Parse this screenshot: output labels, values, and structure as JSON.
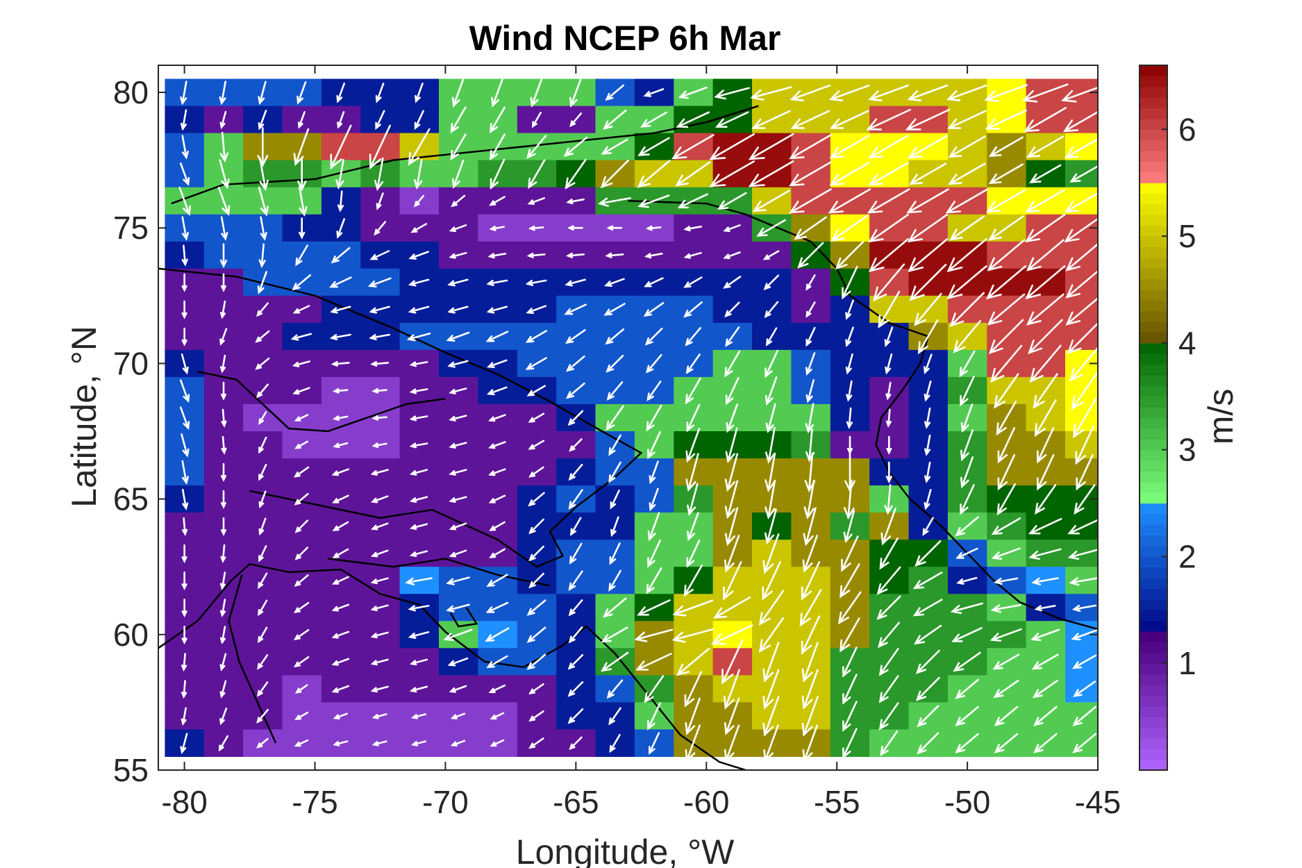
{
  "chart_data": {
    "type": "heatmap",
    "title": "Wind NCEP 6h Mar",
    "xlabel": "Longitude, °W",
    "ylabel": "Latitude, °N",
    "colorbar_label": "m/s",
    "xlim": [
      -81,
      -45
    ],
    "ylim": [
      55,
      81
    ],
    "xticks": [
      -80,
      -75,
      -70,
      -65,
      -60,
      -55,
      -50,
      -45
    ],
    "yticks": [
      55,
      60,
      65,
      70,
      75,
      80
    ],
    "colorbar_ticks": [
      1,
      2,
      3,
      4,
      5,
      6
    ],
    "colorbar_range": [
      0,
      6.6
    ],
    "grid_x": [
      -80,
      -78.5,
      -77,
      -75.5,
      -74,
      -72.5,
      -71,
      -69.5,
      -68,
      -66.5,
      -65,
      -63.5,
      -62,
      -60.5,
      -59,
      -57.5,
      -56,
      -54.5,
      -53,
      -51.5,
      -50,
      -48.5,
      -47,
      -45.5
    ],
    "grid_y": [
      80,
      79,
      78,
      77,
      76,
      75,
      74,
      73,
      72,
      71,
      70,
      69,
      68,
      67,
      66,
      65,
      64,
      63,
      62,
      61,
      60,
      59,
      58,
      57,
      56
    ],
    "speed_m_s": [
      [
        2.0,
        2.0,
        2.0,
        2.0,
        1.5,
        1.5,
        1.5,
        3.0,
        3.0,
        3.0,
        3.0,
        2.0,
        1.5,
        3.0,
        4.0,
        5.0,
        5.0,
        5.0,
        5.0,
        5.0,
        5.0,
        5.5,
        6.0,
        6.0
      ],
      [
        1.5,
        1.0,
        1.5,
        1.0,
        1.0,
        1.5,
        1.5,
        3.0,
        3.0,
        1.0,
        1.0,
        3.0,
        3.0,
        4.0,
        4.0,
        5.0,
        5.0,
        5.0,
        6.0,
        6.0,
        5.0,
        5.5,
        6.0,
        6.0
      ],
      [
        2.0,
        3.0,
        4.5,
        4.5,
        6.0,
        6.0,
        5.0,
        3.0,
        3.0,
        3.0,
        3.0,
        3.0,
        4.0,
        6.0,
        6.5,
        6.5,
        6.0,
        5.5,
        5.5,
        5.5,
        5.0,
        4.5,
        5.0,
        5.5
      ],
      [
        2.0,
        3.0,
        3.5,
        3.5,
        3.0,
        3.5,
        3.0,
        3.0,
        3.5,
        3.5,
        4.0,
        4.5,
        5.0,
        5.0,
        6.5,
        6.5,
        6.0,
        5.5,
        5.5,
        5.0,
        5.0,
        4.5,
        4.0,
        3.5
      ],
      [
        3.0,
        3.0,
        3.0,
        3.0,
        1.5,
        1.0,
        0.5,
        1.0,
        1.0,
        1.0,
        1.0,
        3.5,
        3.5,
        3.5,
        3.5,
        5.0,
        6.0,
        6.0,
        6.0,
        6.0,
        6.0,
        5.5,
        5.5,
        5.5
      ],
      [
        2.0,
        2.0,
        2.0,
        1.5,
        1.5,
        1.0,
        1.0,
        1.0,
        0.5,
        0.5,
        0.5,
        0.5,
        0.5,
        1.0,
        1.0,
        3.5,
        4.5,
        5.5,
        6.0,
        6.0,
        5.0,
        5.0,
        6.0,
        6.0
      ],
      [
        1.5,
        2.0,
        2.0,
        2.0,
        2.0,
        1.5,
        1.5,
        1.0,
        1.0,
        1.0,
        1.0,
        1.0,
        1.0,
        1.0,
        1.0,
        1.0,
        4.0,
        4.5,
        6.5,
        6.5,
        6.5,
        6.0,
        6.0,
        6.0
      ],
      [
        1.0,
        1.0,
        2.0,
        2.0,
        2.0,
        2.0,
        1.5,
        1.5,
        1.5,
        1.5,
        1.5,
        1.5,
        1.5,
        1.5,
        1.5,
        1.5,
        1.0,
        4.0,
        6.0,
        6.5,
        6.5,
        6.5,
        6.5,
        6.0
      ],
      [
        1.0,
        1.0,
        1.0,
        1.0,
        1.5,
        1.5,
        1.5,
        1.5,
        1.5,
        1.5,
        2.0,
        2.0,
        2.0,
        2.0,
        1.5,
        1.5,
        1.0,
        1.5,
        5.0,
        5.0,
        6.0,
        6.0,
        6.0,
        6.0
      ],
      [
        1.0,
        1.0,
        1.0,
        1.5,
        1.5,
        1.5,
        2.0,
        2.0,
        2.0,
        2.0,
        2.0,
        2.0,
        2.0,
        2.0,
        2.0,
        1.5,
        1.5,
        1.5,
        1.5,
        4.5,
        5.0,
        6.0,
        6.0,
        6.0
      ],
      [
        1.5,
        1.0,
        1.0,
        1.0,
        1.0,
        1.0,
        1.0,
        1.5,
        1.5,
        2.0,
        2.0,
        2.0,
        2.0,
        2.0,
        3.0,
        3.0,
        2.0,
        1.5,
        1.5,
        1.5,
        3.0,
        6.0,
        6.0,
        5.5
      ],
      [
        2.0,
        1.0,
        1.0,
        1.0,
        0.5,
        0.5,
        1.0,
        1.0,
        1.5,
        1.5,
        2.0,
        2.0,
        2.0,
        3.0,
        3.0,
        3.0,
        2.0,
        1.5,
        1.0,
        1.5,
        3.5,
        5.0,
        5.0,
        5.5
      ],
      [
        2.0,
        1.0,
        0.5,
        0.5,
        0.5,
        0.5,
        1.0,
        1.0,
        1.0,
        1.0,
        1.5,
        3.0,
        3.0,
        3.0,
        3.0,
        3.0,
        3.0,
        1.5,
        1.0,
        1.5,
        3.0,
        4.5,
        5.0,
        5.5
      ],
      [
        2.0,
        1.0,
        1.0,
        0.5,
        0.5,
        0.5,
        1.0,
        1.0,
        1.0,
        1.0,
        1.0,
        2.0,
        3.0,
        4.0,
        4.0,
        4.0,
        3.5,
        1.0,
        1.0,
        1.5,
        3.5,
        4.5,
        4.5,
        5.0
      ],
      [
        2.0,
        1.0,
        1.0,
        1.0,
        1.0,
        1.0,
        1.0,
        1.0,
        1.0,
        1.0,
        1.5,
        2.0,
        2.0,
        4.5,
        4.5,
        4.5,
        4.5,
        4.5,
        1.5,
        1.5,
        3.5,
        4.5,
        4.5,
        4.5
      ],
      [
        1.5,
        1.0,
        1.0,
        1.0,
        1.0,
        1.0,
        1.0,
        1.0,
        1.0,
        1.5,
        2.0,
        1.5,
        2.0,
        3.5,
        4.5,
        4.5,
        4.5,
        4.5,
        3.0,
        1.5,
        3.5,
        4.0,
        4.0,
        4.0
      ],
      [
        1.0,
        1.0,
        1.0,
        1.0,
        1.0,
        1.0,
        1.0,
        1.0,
        1.0,
        1.5,
        1.5,
        1.5,
        3.0,
        3.0,
        4.5,
        4.0,
        4.5,
        3.5,
        4.5,
        1.5,
        3.0,
        3.5,
        4.0,
        4.0
      ],
      [
        1.0,
        1.0,
        1.0,
        1.0,
        1.0,
        1.0,
        1.0,
        1.0,
        1.0,
        1.5,
        2.0,
        2.0,
        3.0,
        3.0,
        4.5,
        5.0,
        4.5,
        4.5,
        4.0,
        4.0,
        2.0,
        3.0,
        3.5,
        3.5
      ],
      [
        1.0,
        1.0,
        1.0,
        1.0,
        1.0,
        1.0,
        2.5,
        2.0,
        2.0,
        1.5,
        2.0,
        2.0,
        3.0,
        4.0,
        5.0,
        5.0,
        5.0,
        4.5,
        4.0,
        3.5,
        1.5,
        2.0,
        2.5,
        3.0
      ],
      [
        1.0,
        1.0,
        1.0,
        1.0,
        1.0,
        1.0,
        1.5,
        2.0,
        2.0,
        2.0,
        1.5,
        3.0,
        4.0,
        5.0,
        5.0,
        5.0,
        5.0,
        4.5,
        3.5,
        3.5,
        3.5,
        3.0,
        1.5,
        2.0
      ],
      [
        1.0,
        1.0,
        1.0,
        1.0,
        1.0,
        1.0,
        1.5,
        3.0,
        2.5,
        2.0,
        1.5,
        3.0,
        4.5,
        5.0,
        5.5,
        5.0,
        5.0,
        4.5,
        3.5,
        3.5,
        3.5,
        3.5,
        3.0,
        2.5
      ],
      [
        1.0,
        1.0,
        1.0,
        1.0,
        1.0,
        1.0,
        1.0,
        1.5,
        2.0,
        2.0,
        1.5,
        3.5,
        4.5,
        5.0,
        6.0,
        5.0,
        5.0,
        3.5,
        3.5,
        3.5,
        3.5,
        3.0,
        3.0,
        2.5
      ],
      [
        1.0,
        1.0,
        1.0,
        0.5,
        1.0,
        1.0,
        1.0,
        1.0,
        1.0,
        1.0,
        1.5,
        2.0,
        3.5,
        4.5,
        5.0,
        5.0,
        5.0,
        3.5,
        3.5,
        3.5,
        3.0,
        3.0,
        3.0,
        2.5
      ],
      [
        1.0,
        1.0,
        1.0,
        0.5,
        0.5,
        0.5,
        0.5,
        0.5,
        0.5,
        1.0,
        1.5,
        1.5,
        3.0,
        4.5,
        4.5,
        5.0,
        5.0,
        3.5,
        3.5,
        3.0,
        3.0,
        3.0,
        3.0,
        3.0
      ],
      [
        1.5,
        1.0,
        0.5,
        0.5,
        0.5,
        0.5,
        0.5,
        0.5,
        0.5,
        1.0,
        1.0,
        1.5,
        2.0,
        4.5,
        4.5,
        4.5,
        4.5,
        3.5,
        3.0,
        3.0,
        3.0,
        3.0,
        3.0,
        3.0
      ]
    ],
    "arrow_direction_deg": [
      [
        190,
        190,
        195,
        200,
        200,
        200,
        200,
        200,
        200,
        200,
        200,
        230,
        250,
        250,
        255,
        255,
        250,
        250,
        250,
        250,
        250,
        250,
        250,
        250
      ],
      [
        190,
        195,
        200,
        200,
        200,
        205,
        205,
        210,
        210,
        210,
        220,
        230,
        240,
        245,
        245,
        245,
        245,
        245,
        245,
        245,
        245,
        245,
        240,
        240
      ],
      [
        170,
        175,
        180,
        200,
        205,
        205,
        210,
        210,
        210,
        220,
        230,
        240,
        240,
        240,
        240,
        240,
        240,
        240,
        240,
        240,
        240,
        240,
        240,
        240
      ],
      [
        160,
        165,
        170,
        180,
        190,
        190,
        190,
        200,
        205,
        210,
        215,
        225,
        230,
        235,
        240,
        240,
        240,
        240,
        240,
        240,
        240,
        240,
        240,
        240
      ],
      [
        160,
        160,
        165,
        170,
        185,
        200,
        220,
        230,
        240,
        250,
        260,
        260,
        250,
        245,
        240,
        240,
        240,
        240,
        240,
        240,
        240,
        240,
        240,
        240
      ],
      [
        170,
        170,
        170,
        180,
        200,
        220,
        240,
        250,
        260,
        265,
        270,
        270,
        265,
        260,
        250,
        240,
        235,
        235,
        235,
        235,
        235,
        235,
        235,
        235
      ],
      [
        175,
        180,
        185,
        210,
        230,
        245,
        250,
        255,
        260,
        265,
        265,
        265,
        260,
        255,
        250,
        240,
        225,
        225,
        230,
        230,
        230,
        230,
        230,
        230
      ],
      [
        180,
        180,
        200,
        230,
        245,
        250,
        255,
        255,
        260,
        260,
        255,
        250,
        245,
        240,
        235,
        225,
        210,
        205,
        220,
        225,
        230,
        230,
        230,
        230
      ],
      [
        180,
        190,
        220,
        245,
        255,
        255,
        255,
        255,
        255,
        250,
        245,
        240,
        235,
        230,
        225,
        220,
        210,
        200,
        210,
        220,
        225,
        230,
        230,
        230
      ],
      [
        180,
        200,
        230,
        255,
        260,
        260,
        255,
        250,
        245,
        240,
        235,
        230,
        225,
        220,
        215,
        210,
        205,
        200,
        200,
        210,
        220,
        225,
        225,
        225
      ],
      [
        165,
        190,
        230,
        255,
        265,
        265,
        260,
        255,
        250,
        240,
        230,
        225,
        220,
        215,
        210,
        205,
        200,
        195,
        195,
        200,
        210,
        220,
        220,
        220
      ],
      [
        160,
        180,
        220,
        250,
        265,
        265,
        260,
        255,
        250,
        240,
        230,
        220,
        215,
        210,
        205,
        200,
        195,
        190,
        190,
        195,
        205,
        215,
        215,
        215
      ],
      [
        160,
        175,
        210,
        245,
        260,
        265,
        260,
        255,
        250,
        240,
        225,
        215,
        210,
        205,
        200,
        195,
        190,
        185,
        185,
        190,
        200,
        210,
        210,
        210
      ],
      [
        165,
        175,
        205,
        240,
        255,
        260,
        260,
        255,
        250,
        240,
        225,
        210,
        205,
        200,
        195,
        190,
        185,
        180,
        180,
        190,
        200,
        205,
        205,
        205
      ],
      [
        170,
        180,
        205,
        235,
        250,
        255,
        255,
        255,
        250,
        235,
        220,
        210,
        200,
        195,
        195,
        190,
        185,
        180,
        180,
        190,
        200,
        205,
        205,
        205
      ],
      [
        170,
        180,
        200,
        230,
        245,
        250,
        255,
        255,
        245,
        230,
        215,
        205,
        200,
        195,
        195,
        190,
        190,
        185,
        185,
        195,
        205,
        210,
        215,
        215
      ],
      [
        175,
        180,
        200,
        225,
        240,
        250,
        255,
        250,
        240,
        225,
        210,
        200,
        200,
        200,
        195,
        195,
        195,
        195,
        200,
        210,
        230,
        240,
        245,
        245
      ],
      [
        180,
        185,
        205,
        225,
        240,
        250,
        255,
        250,
        240,
        225,
        210,
        205,
        205,
        205,
        200,
        200,
        200,
        205,
        210,
        225,
        245,
        250,
        255,
        255
      ],
      [
        180,
        190,
        210,
        230,
        245,
        255,
        260,
        255,
        240,
        225,
        215,
        210,
        210,
        210,
        205,
        205,
        205,
        210,
        220,
        240,
        255,
        260,
        260,
        260
      ],
      [
        180,
        190,
        210,
        235,
        250,
        255,
        260,
        255,
        245,
        230,
        220,
        230,
        245,
        250,
        240,
        215,
        210,
        215,
        225,
        240,
        255,
        260,
        260,
        260
      ],
      [
        180,
        190,
        210,
        235,
        250,
        255,
        255,
        250,
        240,
        230,
        220,
        240,
        255,
        255,
        245,
        215,
        205,
        210,
        220,
        235,
        245,
        250,
        250,
        250
      ],
      [
        185,
        195,
        215,
        235,
        250,
        255,
        255,
        250,
        240,
        230,
        225,
        235,
        245,
        230,
        205,
        200,
        200,
        205,
        215,
        225,
        235,
        240,
        240,
        240
      ],
      [
        185,
        195,
        215,
        235,
        250,
        255,
        255,
        250,
        245,
        235,
        225,
        220,
        215,
        205,
        200,
        200,
        200,
        205,
        215,
        225,
        230,
        235,
        235,
        235
      ],
      [
        190,
        200,
        220,
        240,
        250,
        255,
        255,
        250,
        245,
        235,
        225,
        215,
        205,
        200,
        200,
        200,
        200,
        205,
        215,
        225,
        230,
        230,
        230,
        230
      ],
      [
        195,
        210,
        230,
        245,
        255,
        255,
        255,
        250,
        245,
        235,
        225,
        210,
        205,
        200,
        200,
        200,
        200,
        205,
        215,
        225,
        230,
        230,
        230,
        230
      ]
    ],
    "colormap_bands": [
      {
        "from": 0,
        "to": 1.25,
        "dark": "#4a007f",
        "light": "#b066ff"
      },
      {
        "from": 1.25,
        "to": 2.5,
        "dark": "#000080",
        "light": "#1e90ff"
      },
      {
        "from": 2.5,
        "to": 4.0,
        "dark": "#006400",
        "light": "#7dff7d"
      },
      {
        "from": 4.0,
        "to": 5.5,
        "dark": "#645000",
        "light": "#ffff00"
      },
      {
        "from": 5.5,
        "to": 6.6,
        "dark": "#8b0000",
        "light": "#ff7f7f"
      }
    ],
    "arrow_color": "#ffffff",
    "coastline_color": "#000000",
    "grid": false,
    "colorbar_position": "right"
  }
}
